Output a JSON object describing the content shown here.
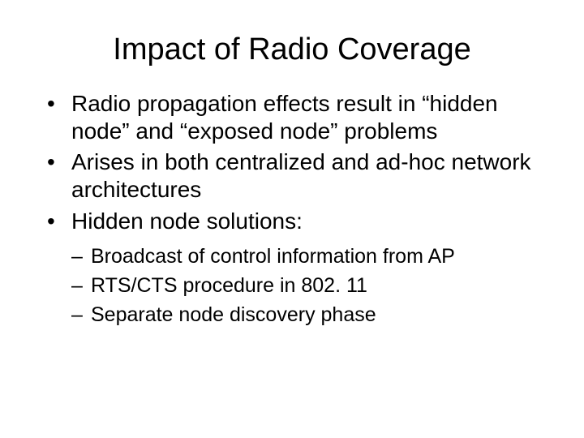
{
  "title": "Impact of Radio Coverage",
  "bullets": [
    "Radio propagation effects result in “hidden node” and “exposed node” problems",
    "Arises in both centralized and ad-hoc network architectures",
    "Hidden node solutions:"
  ],
  "sub_bullets": [
    "Broadcast of control information from AP",
    "RTS/CTS procedure in 802. 11",
    "Separate node discovery phase"
  ],
  "style": {
    "background_color": "#ffffff",
    "text_color": "#000000",
    "title_fontsize": 38,
    "bullet_fontsize": 28,
    "sub_bullet_fontsize": 25,
    "font_family": "Arial"
  }
}
